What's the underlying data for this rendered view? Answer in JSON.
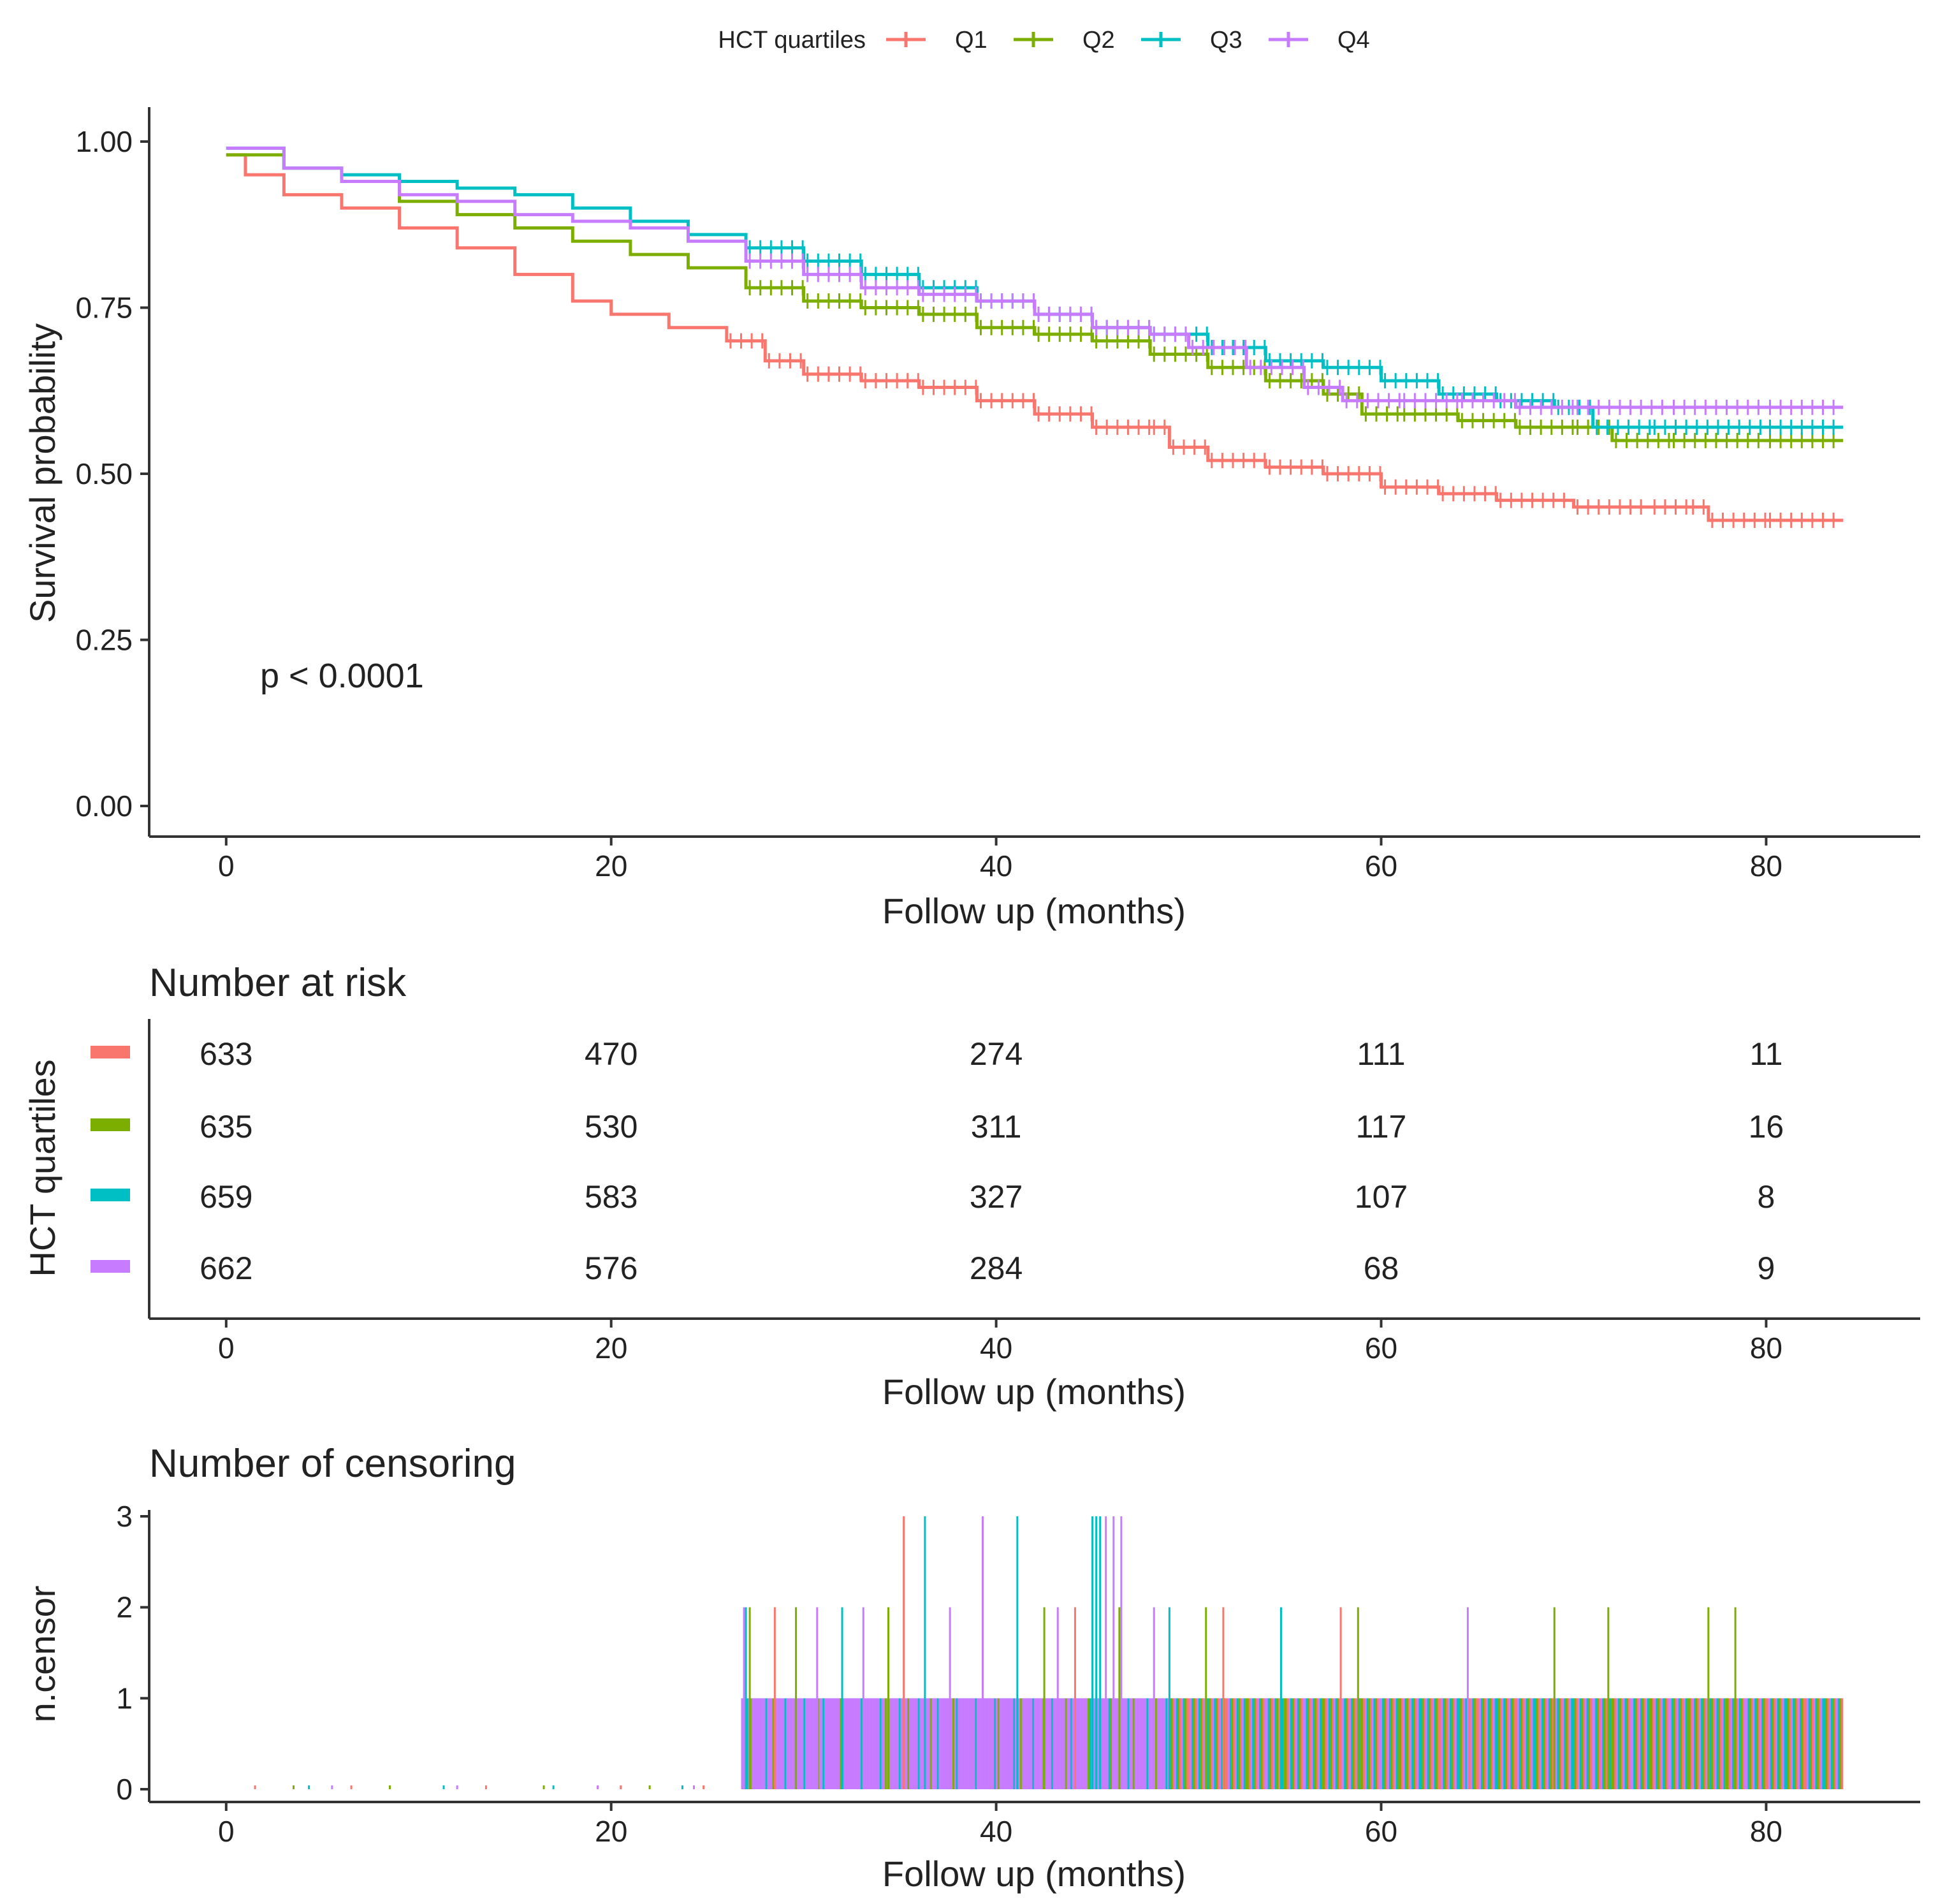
{
  "chart_data": [
    {
      "type": "line",
      "subtype": "kaplan-meier",
      "title": "",
      "xlabel": "Follow up (months)",
      "ylabel": "Survival probability",
      "xlim": [
        -4,
        88
      ],
      "ylim": [
        -0.04,
        1.05
      ],
      "xticks": [
        0,
        20,
        40,
        60,
        80
      ],
      "xtick_labels": [
        "0",
        "20",
        "40",
        "60",
        "80"
      ],
      "yticks": [
        0,
        0.25,
        0.5,
        0.75,
        1.0
      ],
      "ytick_labels": [
        "0.00",
        "0.25",
        "0.50",
        "0.75",
        "1.00"
      ],
      "grid": false,
      "annotation": "p < 0.0001",
      "legend": {
        "title": "HCT quartiles",
        "position": "top",
        "entries": [
          "Q1",
          "Q2",
          "Q3",
          "Q4"
        ]
      },
      "series": [
        {
          "name": "Q1",
          "color": "#F8766D",
          "x": [
            0,
            1,
            3,
            6,
            9,
            12,
            15,
            18,
            20,
            23,
            26,
            28,
            30,
            33,
            36,
            39,
            42,
            45,
            48,
            49,
            51,
            54,
            57,
            60,
            63,
            66,
            70,
            74,
            76,
            77,
            80,
            84
          ],
          "y": [
            0.98,
            0.95,
            0.92,
            0.9,
            0.87,
            0.84,
            0.8,
            0.76,
            0.74,
            0.72,
            0.7,
            0.67,
            0.65,
            0.64,
            0.63,
            0.61,
            0.59,
            0.57,
            0.57,
            0.54,
            0.52,
            0.51,
            0.5,
            0.48,
            0.47,
            0.46,
            0.45,
            0.45,
            0.45,
            0.43,
            0.43,
            0.43
          ]
        },
        {
          "name": "Q2",
          "color": "#7CAE00",
          "x": [
            0,
            3,
            6,
            9,
            12,
            15,
            18,
            21,
            24,
            27,
            30,
            33,
            36,
            39,
            42,
            45,
            48,
            51,
            54,
            57,
            59,
            61,
            64,
            67,
            70,
            72,
            75,
            80,
            84
          ],
          "y": [
            0.98,
            0.96,
            0.94,
            0.91,
            0.89,
            0.87,
            0.85,
            0.83,
            0.81,
            0.78,
            0.76,
            0.75,
            0.74,
            0.72,
            0.71,
            0.7,
            0.68,
            0.66,
            0.64,
            0.62,
            0.59,
            0.59,
            0.58,
            0.57,
            0.57,
            0.55,
            0.55,
            0.55,
            0.55
          ]
        },
        {
          "name": "Q3",
          "color": "#00BFC4",
          "x": [
            0,
            3,
            6,
            9,
            12,
            15,
            18,
            21,
            24,
            27,
            30,
            33,
            36,
            39,
            42,
            45,
            48,
            51,
            54,
            57,
            60,
            63,
            66,
            69,
            71,
            74,
            80,
            84
          ],
          "y": [
            0.99,
            0.96,
            0.95,
            0.94,
            0.93,
            0.92,
            0.9,
            0.88,
            0.86,
            0.84,
            0.82,
            0.8,
            0.78,
            0.76,
            0.74,
            0.72,
            0.71,
            0.69,
            0.67,
            0.66,
            0.64,
            0.62,
            0.61,
            0.6,
            0.57,
            0.57,
            0.57,
            0.57
          ]
        },
        {
          "name": "Q4",
          "color": "#C77CFF",
          "x": [
            0,
            3,
            6,
            9,
            12,
            15,
            18,
            21,
            24,
            27,
            30,
            33,
            36,
            39,
            42,
            45,
            48,
            50,
            53,
            56,
            58,
            61,
            64,
            67,
            70,
            75,
            80,
            84
          ],
          "y": [
            0.99,
            0.96,
            0.94,
            0.92,
            0.91,
            0.89,
            0.88,
            0.87,
            0.85,
            0.82,
            0.8,
            0.78,
            0.77,
            0.76,
            0.74,
            0.72,
            0.71,
            0.69,
            0.66,
            0.63,
            0.61,
            0.61,
            0.61,
            0.6,
            0.6,
            0.6,
            0.6,
            0.6
          ]
        }
      ]
    },
    {
      "type": "table",
      "title": "Number at risk",
      "xlabel": "Follow up (months)",
      "ylabel": "HCT quartiles",
      "xlim": [
        -4,
        88
      ],
      "xticks": [
        0,
        20,
        40,
        60,
        80
      ],
      "xtick_labels": [
        "0",
        "20",
        "40",
        "60",
        "80"
      ],
      "rows": [
        {
          "name": "Q1",
          "color": "#F8766D",
          "values": [
            "633",
            "470",
            "274",
            "111",
            "11"
          ]
        },
        {
          "name": "Q2",
          "color": "#7CAE00",
          "values": [
            "635",
            "530",
            "311",
            "117",
            "16"
          ]
        },
        {
          "name": "Q3",
          "color": "#00BFC4",
          "values": [
            "659",
            "583",
            "327",
            "107",
            "8"
          ]
        },
        {
          "name": "Q4",
          "color": "#C77CFF",
          "values": [
            "662",
            "576",
            "284",
            "68",
            "9"
          ]
        }
      ]
    },
    {
      "type": "bar",
      "subtype": "censoring-spikes",
      "title": "Number of censoring",
      "xlabel": "Follow up (months)",
      "ylabel": "n.censor",
      "xlim": [
        -4,
        88
      ],
      "ylim": [
        -0.05,
        3.05
      ],
      "xticks": [
        0,
        20,
        40,
        60,
        80
      ],
      "xtick_labels": [
        "0",
        "20",
        "40",
        "60",
        "80"
      ],
      "yticks": [
        0,
        1,
        2,
        3
      ],
      "ytick_labels": [
        "0",
        "1",
        "2",
        "3"
      ],
      "grid": false,
      "dense_range": [
        26.8,
        84.0
      ],
      "dense_value": 1,
      "series": [
        {
          "name": "Q1",
          "color": "#F8766D",
          "x": [
            28.5,
            35.2,
            44.1,
            51.8,
            57.9
          ],
          "values": [
            2,
            3,
            2,
            2,
            2
          ]
        },
        {
          "name": "Q2",
          "color": "#7CAE00",
          "x": [
            27.2,
            29.6,
            34.4,
            42.5,
            46.4,
            50.9,
            58.8,
            69.0,
            71.8,
            77.0,
            78.4
          ],
          "values": [
            2,
            2,
            2,
            2,
            2,
            2,
            2,
            2,
            2,
            2,
            2
          ]
        },
        {
          "name": "Q3",
          "color": "#00BFC4",
          "x": [
            27.0,
            32.0,
            36.3,
            41.1,
            45.0,
            45.2,
            45.4,
            49.0,
            54.8
          ],
          "values": [
            2,
            2,
            3,
            3,
            3,
            3,
            3,
            2,
            2
          ]
        },
        {
          "name": "Q4",
          "color": "#C77CFF",
          "x": [
            26.9,
            30.7,
            33.1,
            37.6,
            39.3,
            43.2,
            45.7,
            46.1,
            46.5,
            48.2,
            64.5
          ],
          "values": [
            2,
            2,
            2,
            2,
            3,
            2,
            3,
            3,
            3,
            2,
            2
          ]
        }
      ]
    }
  ]
}
